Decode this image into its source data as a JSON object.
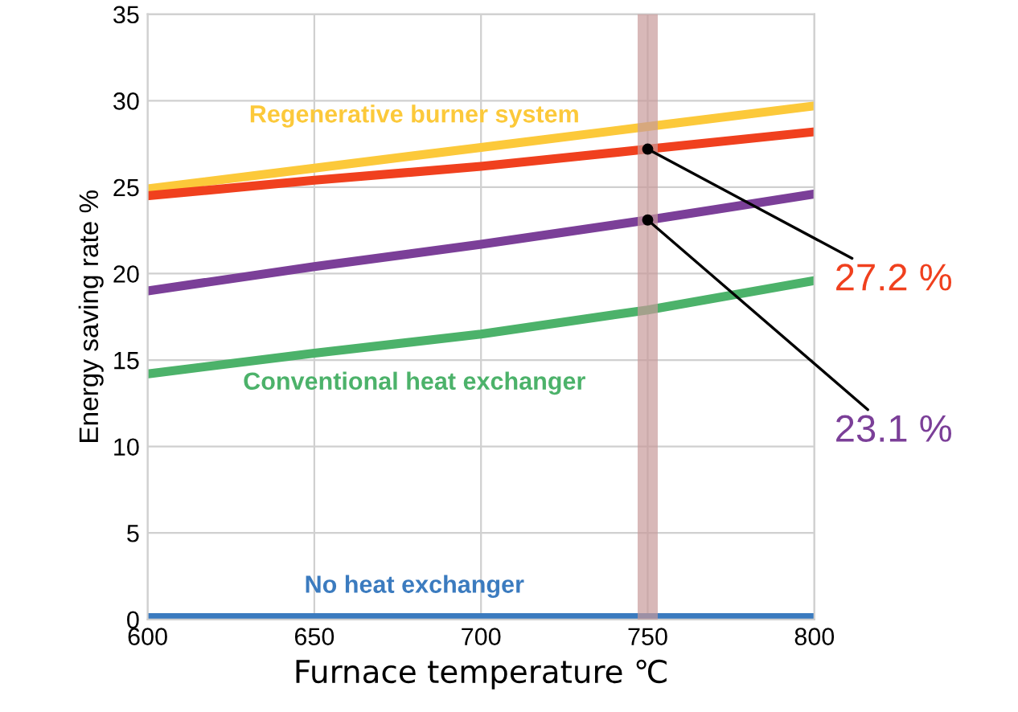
{
  "chart_data": {
    "type": "line",
    "xlabel": "Furnace temperature ℃",
    "ylabel": "Energy saving rate %",
    "x": [
      600,
      650,
      700,
      750,
      800
    ],
    "series": [
      {
        "name": "Regenerative burner system",
        "color": "#fcc93a",
        "values": [
          24.9,
          26.1,
          27.3,
          28.5,
          29.7
        ]
      },
      {
        "color": "#f0401e",
        "values": [
          24.5,
          25.4,
          26.2,
          27.2,
          28.2
        ]
      },
      {
        "color": "#7b3f98",
        "values": [
          19.0,
          20.4,
          21.7,
          23.1,
          24.6
        ]
      },
      {
        "name": "Conventional heat exchanger",
        "color": "#4cb26a",
        "values": [
          14.2,
          15.4,
          16.5,
          17.9,
          19.6
        ]
      },
      {
        "name": "No heat exchanger",
        "color": "#3b7bbf",
        "values": [
          0.1,
          0.1,
          0.1,
          0.1,
          0.1
        ]
      }
    ],
    "annotations": [
      {
        "text": "27.2 %",
        "x": 750,
        "y": 27.2
      },
      {
        "text": "23.1 %",
        "x": 750,
        "y": 23.1
      }
    ],
    "ref_lines": [
      {
        "axis": "x",
        "value": 750,
        "color": "#c89a9a"
      }
    ],
    "xlim": [
      600,
      800
    ],
    "xticks": [
      600,
      650,
      700,
      750,
      800
    ],
    "ylim": [
      0,
      35
    ],
    "yticks": [
      0,
      5,
      10,
      15,
      20,
      25,
      30,
      35
    ],
    "grid": true,
    "marker": "none",
    "line_style": "solid"
  }
}
